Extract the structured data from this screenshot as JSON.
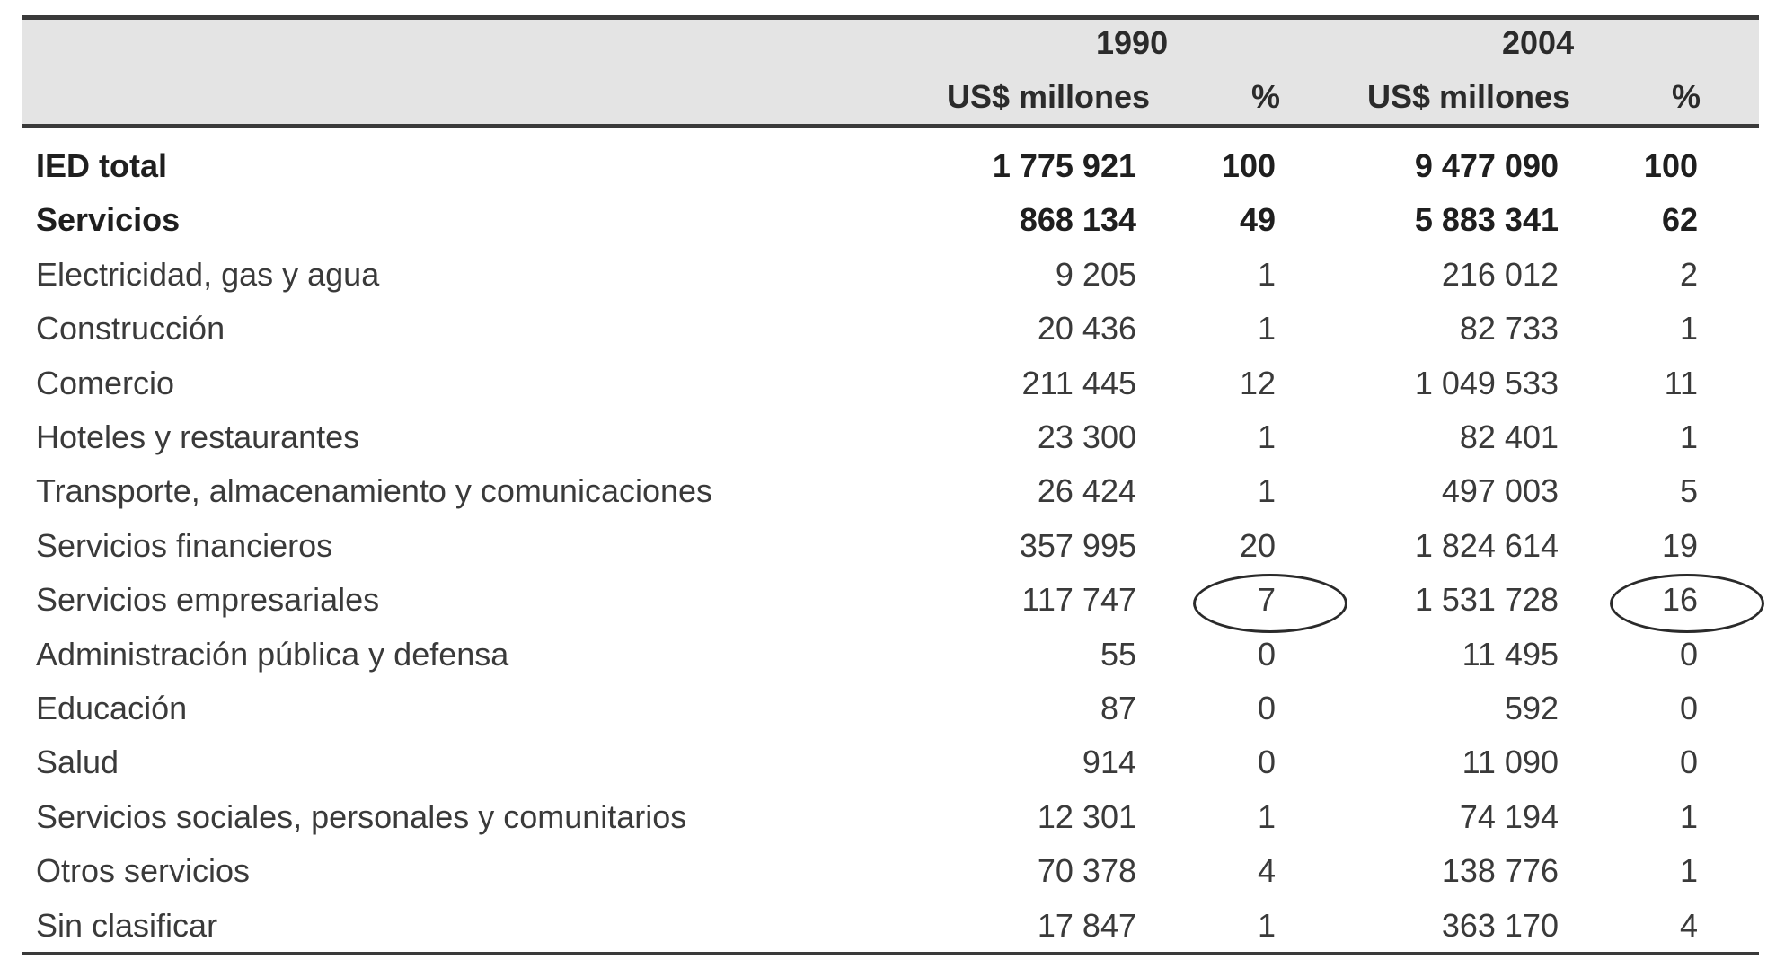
{
  "header": {
    "year_1990": "1990",
    "year_2004": "2004",
    "unit_1990": "US$ millones",
    "pct_1990": "%",
    "unit_2004": "US$ millones",
    "pct_2004": "%"
  },
  "rows": [
    {
      "label": "IED total",
      "usd_1990": "1 775 921",
      "pct_1990": "100",
      "usd_2004": "9 477 090",
      "pct_2004": "100",
      "bold": true
    },
    {
      "label": "Servicios",
      "usd_1990": "868 134",
      "pct_1990": "49",
      "usd_2004": "5 883 341",
      "pct_2004": "62",
      "bold": true
    },
    {
      "label": "Electricidad, gas y agua",
      "usd_1990": "9 205",
      "pct_1990": "1",
      "usd_2004": "216 012",
      "pct_2004": "2"
    },
    {
      "label": "Construcción",
      "usd_1990": "20 436",
      "pct_1990": "1",
      "usd_2004": "82 733",
      "pct_2004": "1"
    },
    {
      "label": "Comercio",
      "usd_1990": "211 445",
      "pct_1990": "12",
      "usd_2004": "1 049 533",
      "pct_2004": "11"
    },
    {
      "label": "Hoteles y restaurantes",
      "usd_1990": "23 300",
      "pct_1990": "1",
      "usd_2004": "82 401",
      "pct_2004": "1"
    },
    {
      "label": "Transporte, almacenamiento y comunicaciones",
      "usd_1990": "26 424",
      "pct_1990": "1",
      "usd_2004": "497 003",
      "pct_2004": "5"
    },
    {
      "label": "Servicios financieros",
      "usd_1990": "357 995",
      "pct_1990": "20",
      "usd_2004": "1 824 614",
      "pct_2004": "19"
    },
    {
      "label": "Servicios empresariales",
      "usd_1990": "117 747",
      "pct_1990": "7",
      "usd_2004": "1 531 728",
      "pct_2004": "16",
      "circled": true
    },
    {
      "label": "Administración pública y defensa",
      "usd_1990": "55",
      "pct_1990": "0",
      "usd_2004": "11 495",
      "pct_2004": "0"
    },
    {
      "label": "Educación",
      "usd_1990": "87",
      "pct_1990": "0",
      "usd_2004": "592",
      "pct_2004": "0"
    },
    {
      "label": "Salud",
      "usd_1990": "914",
      "pct_1990": "0",
      "usd_2004": "11 090",
      "pct_2004": "0"
    },
    {
      "label": "Servicios sociales, personales y comunitarios",
      "usd_1990": "12 301",
      "pct_1990": "1",
      "usd_2004": "74 194",
      "pct_2004": "1"
    },
    {
      "label": "Otros servicios",
      "usd_1990": "70 378",
      "pct_1990": "4",
      "usd_2004": "138 776",
      "pct_2004": "1"
    },
    {
      "label": "Sin clasificar",
      "usd_1990": "17 847",
      "pct_1990": "1",
      "usd_2004": "363 170",
      "pct_2004": "4"
    }
  ]
}
